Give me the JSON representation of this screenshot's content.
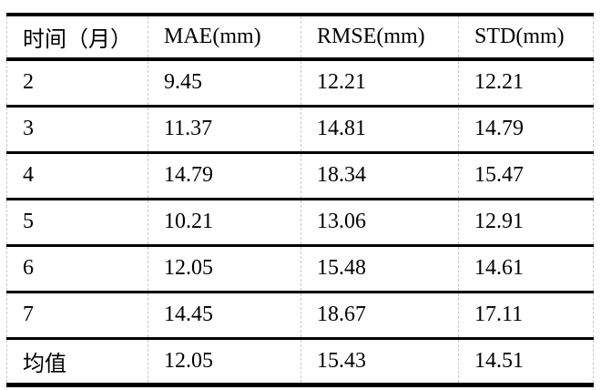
{
  "chart_data": {
    "type": "table",
    "columns": [
      "时间（月）",
      "MAE(mm)",
      "RMSE(mm)",
      "STD(mm)"
    ],
    "rows": [
      [
        "2",
        "9.45",
        "12.21",
        "12.21"
      ],
      [
        "3",
        "11.37",
        "14.81",
        "14.79"
      ],
      [
        "4",
        "14.79",
        "18.34",
        "15.47"
      ],
      [
        "5",
        "10.21",
        "13.06",
        "12.91"
      ],
      [
        "6",
        "12.05",
        "15.48",
        "14.61"
      ],
      [
        "7",
        "14.45",
        "18.67",
        "17.11"
      ],
      [
        "均值",
        "12.05",
        "15.43",
        "14.51"
      ]
    ]
  },
  "colors": {
    "text": "#000000",
    "rule": "#000000",
    "column_divider": "#c8c8c8",
    "background": "#ffffff"
  }
}
